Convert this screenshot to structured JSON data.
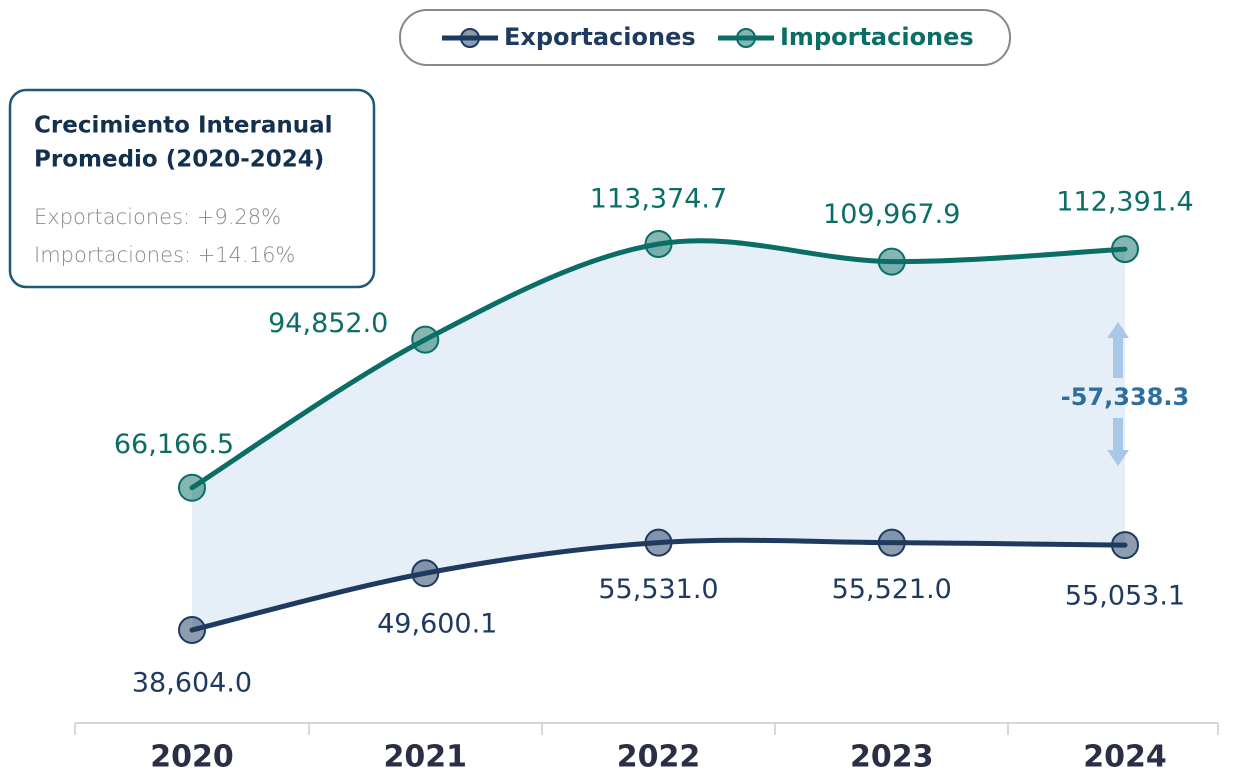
{
  "chart_data": {
    "type": "line",
    "categories": [
      "2020",
      "2021",
      "2022",
      "2023",
      "2024"
    ],
    "series": [
      {
        "name": "Exportaciones",
        "color": "#1e3a5f",
        "values": [
          38604.0,
          49600.1,
          55531.0,
          55521.0,
          55053.1
        ],
        "value_labels": [
          "38,604.0",
          "49,600.1",
          "55,531.0",
          "55,521.0",
          "55,053.1"
        ]
      },
      {
        "name": "Importaciones",
        "color": "#0b6e66",
        "values": [
          66166.5,
          94852.0,
          113374.7,
          109967.9,
          112391.4
        ],
        "value_labels": [
          "66,166.5",
          "94,852.0",
          "113,374.7",
          "109,967.9",
          "112,391.4"
        ]
      }
    ],
    "annotations": [
      {
        "text": "-57,338.3"
      }
    ],
    "info_box": {
      "title_lines": [
        "Crecimiento Interanual",
        "Promedio (2020-2024)"
      ],
      "lines": [
        "Exportaciones: +9.28%",
        "Importaciones: +14.16%"
      ]
    },
    "legend": "top"
  }
}
